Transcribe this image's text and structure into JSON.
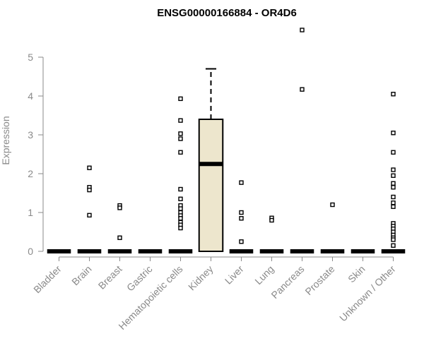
{
  "chart_data": {
    "type": "boxplot",
    "title": "ENSG00000166884 - OR4D6",
    "xlabel": "",
    "ylabel": "Expression",
    "ylim": [
      0,
      5.7
    ],
    "yticks": [
      0,
      1,
      2,
      3,
      4,
      5
    ],
    "box_fill": "#ede6cd",
    "categories": [
      "Bladder",
      "Brain",
      "Breast",
      "Gastric",
      "Hematopoietic cells",
      "Kidney",
      "Liver",
      "Lung",
      "Pancreas",
      "Prostate",
      "Skin",
      "Unknown / Other"
    ],
    "boxes": [
      {
        "category": "Bladder",
        "median": 0,
        "q1": 0,
        "q3": 0,
        "whisker_low": 0,
        "whisker_high": 0,
        "outliers": []
      },
      {
        "category": "Brain",
        "median": 0,
        "q1": 0,
        "q3": 0,
        "whisker_low": 0,
        "whisker_high": 0,
        "outliers": [
          2.15,
          1.65,
          1.58,
          0.93
        ]
      },
      {
        "category": "Breast",
        "median": 0,
        "q1": 0,
        "q3": 0,
        "whisker_low": 0,
        "whisker_high": 0,
        "outliers": [
          1.18,
          1.12,
          0.35
        ]
      },
      {
        "category": "Gastric",
        "median": 0,
        "q1": 0,
        "q3": 0,
        "whisker_low": 0,
        "whisker_high": 0,
        "outliers": []
      },
      {
        "category": "Hematopoietic cells",
        "median": 0,
        "q1": 0,
        "q3": 0,
        "whisker_low": 0,
        "whisker_high": 0,
        "outliers": [
          3.93,
          3.37,
          3.03,
          2.9,
          2.55,
          1.6,
          1.35,
          1.18,
          1.1,
          1.0,
          0.92,
          0.85,
          0.75,
          0.68,
          0.6
        ]
      },
      {
        "category": "Kidney",
        "median": 2.25,
        "q1": 0,
        "q3": 3.4,
        "whisker_low": 0,
        "whisker_high": 4.7,
        "outliers": []
      },
      {
        "category": "Liver",
        "median": 0,
        "q1": 0,
        "q3": 0,
        "whisker_low": 0,
        "whisker_high": 0,
        "outliers": [
          1.77,
          1.0,
          0.85,
          0.25
        ]
      },
      {
        "category": "Lung",
        "median": 0,
        "q1": 0,
        "q3": 0,
        "whisker_low": 0,
        "whisker_high": 0,
        "outliers": [
          0.86,
          0.8
        ]
      },
      {
        "category": "Pancreas",
        "median": 0,
        "q1": 0,
        "q3": 0,
        "whisker_low": 0,
        "whisker_high": 0,
        "outliers": [
          5.7,
          4.17
        ]
      },
      {
        "category": "Prostate",
        "median": 0,
        "q1": 0,
        "q3": 0,
        "whisker_low": 0,
        "whisker_high": 0,
        "outliers": [
          1.2
        ]
      },
      {
        "category": "Skin",
        "median": 0,
        "q1": 0,
        "q3": 0,
        "whisker_low": 0,
        "whisker_high": 0,
        "outliers": []
      },
      {
        "category": "Unknown / Other",
        "median": 0,
        "q1": 0,
        "q3": 0,
        "whisker_low": 0,
        "whisker_high": 0,
        "outliers": [
          4.05,
          3.05,
          2.55,
          2.1,
          1.95,
          1.75,
          1.65,
          1.4,
          1.25,
          1.15,
          0.72,
          0.65,
          0.58,
          0.5,
          0.42,
          0.35,
          0.3,
          0.15
        ]
      }
    ]
  }
}
